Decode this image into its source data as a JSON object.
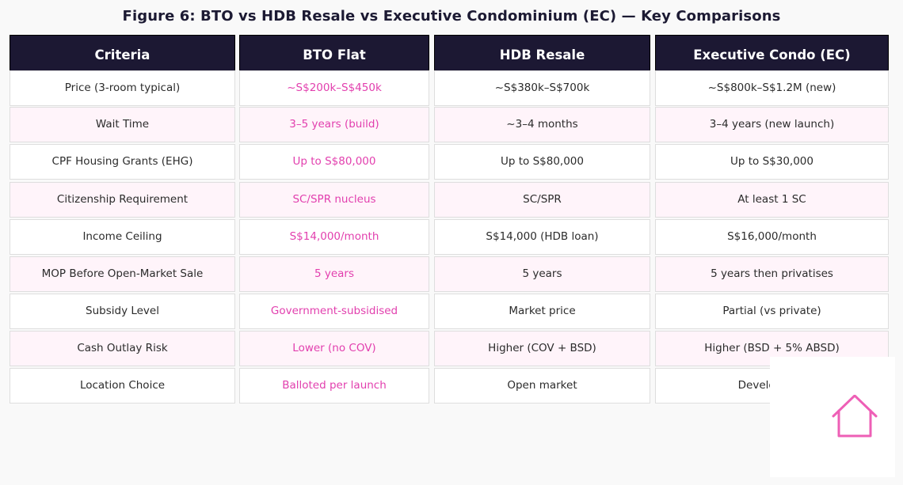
{
  "title": "Figure 6: BTO vs HDB Resale vs Executive Condominium (EC) — Key Comparisons",
  "table": {
    "headers": [
      "Criteria",
      "BTO Flat",
      "HDB Resale",
      "Executive Condo (EC)"
    ],
    "rows": [
      [
        "Price (3-room typical)",
        "~S$200k–S$450k",
        "~S$380k–S$700k",
        "~S$800k–S$1.2M (new)"
      ],
      [
        "Wait Time",
        "3–5 years (build)",
        "~3–4 months",
        "3–4 years (new launch)"
      ],
      [
        "CPF Housing Grants (EHG)",
        "Up to S$80,000",
        "Up to S$80,000",
        "Up to S$30,000"
      ],
      [
        "Citizenship Requirement",
        "SC/SPR nucleus",
        "SC/SPR",
        "At least 1 SC"
      ],
      [
        "Income Ceiling",
        "S$14,000/month",
        "S$14,000 (HDB loan)",
        "S$16,000/month"
      ],
      [
        "MOP Before Open-Market Sale",
        "5 years",
        "5 years",
        "5 years then privatises"
      ],
      [
        "Subsidy Level",
        "Government-subsidised",
        "Market price",
        "Partial (vs private)"
      ],
      [
        "Cash Outlay Risk",
        "Lower (no COV)",
        "Higher (COV + BSD)",
        "Higher (BSD + 5% ABSD)"
      ],
      [
        "Location Choice",
        "Balloted per launch",
        "Open market",
        "Developer la"
      ]
    ]
  },
  "colors": {
    "header_bg": "#1c1833",
    "bto_text": "#e23fae",
    "row_alt_bg": "#fff4fa",
    "icon": "#ee5fb6"
  },
  "icons": {
    "badge": "house-icon"
  }
}
